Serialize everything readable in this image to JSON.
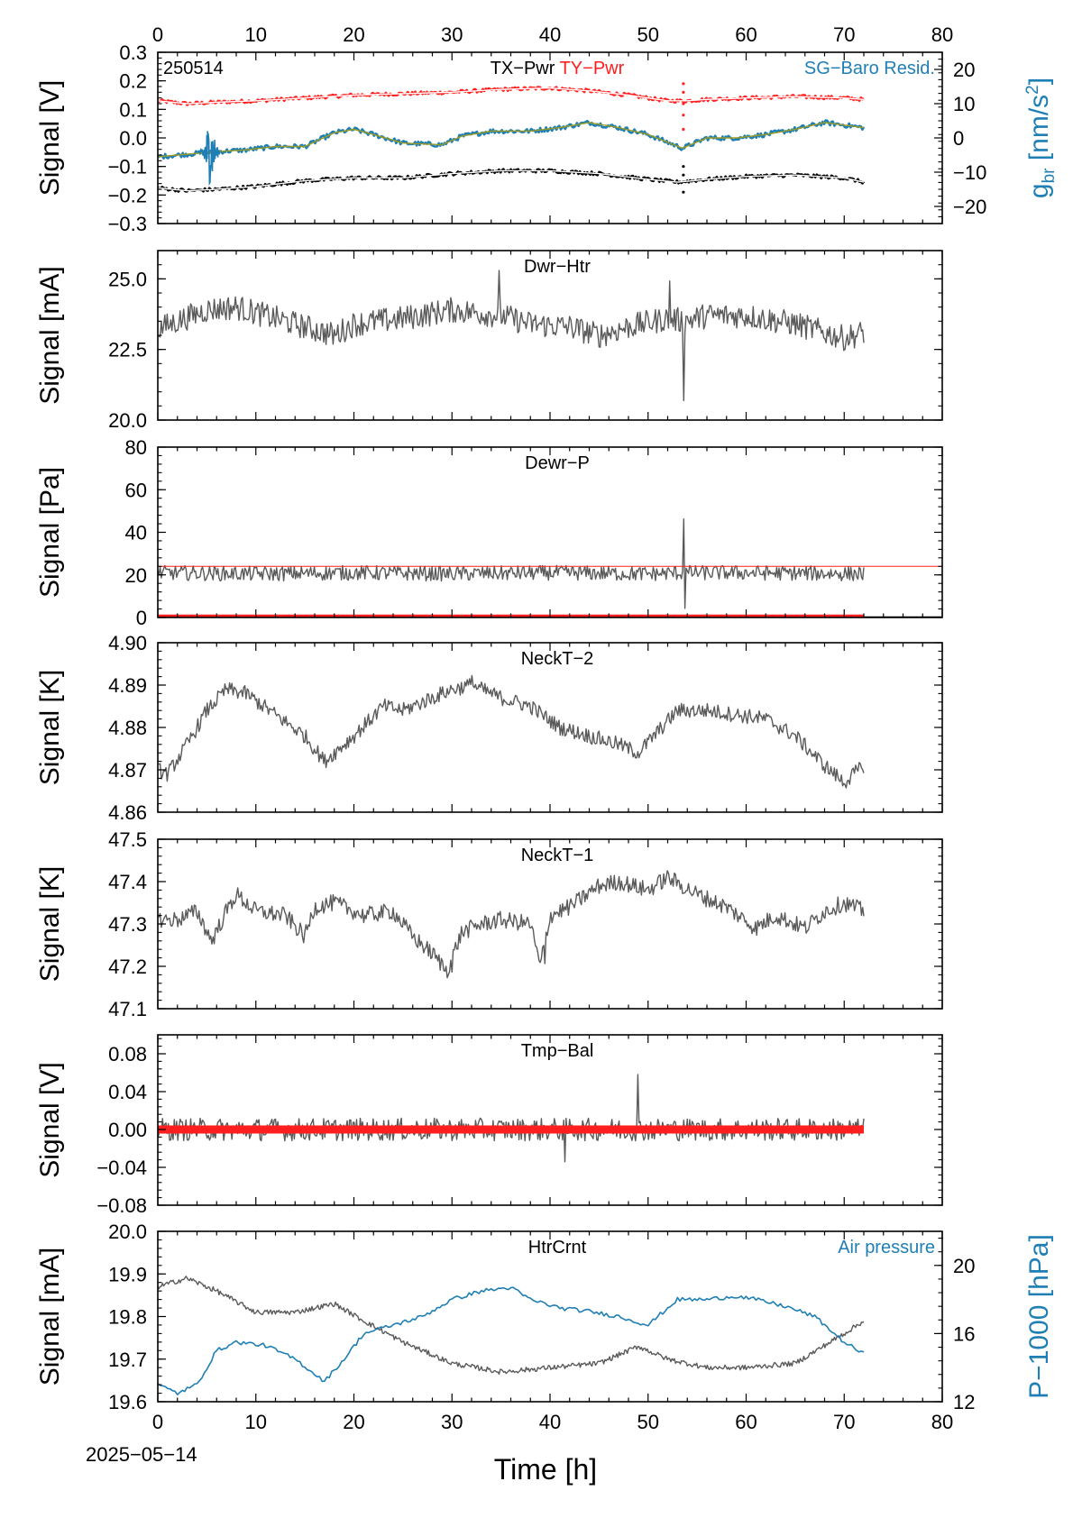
{
  "figure": {
    "date_label": "2025−05−14",
    "x_title": "Time [h]",
    "x_range": [
      0,
      80
    ],
    "x_ticks": [
      0,
      10,
      20,
      30,
      40,
      50,
      60,
      70,
      80
    ],
    "colors": {
      "black": "#000000",
      "red": "#ff1f1f",
      "blue": "#1f7fb4",
      "gray": "#5a5a5a",
      "olive": "#9a9a26"
    }
  },
  "chart_data": [
    {
      "type": "line",
      "panel_id": "p1",
      "y_title": "Signal [V]",
      "ylim": [
        -0.3,
        0.3
      ],
      "y_ticks": [
        -0.3,
        -0.2,
        -0.1,
        0.0,
        0.1,
        0.2,
        0.3
      ],
      "y_tick_labels": [
        "−0.3",
        "−0.2",
        "−0.1",
        "0.0",
        "0.1",
        "0.2",
        "0.3"
      ],
      "annotations": {
        "id_label": "250514",
        "label_left": "TX−Pwr",
        "label_right": "TY−Pwr",
        "right_label": "SG−Baro Resid."
      },
      "right_axis": {
        "title_main": "g",
        "title_sub": "br",
        "title_unit": " [nm/s",
        "title_sup": "2",
        "title_end": "]",
        "ylim": [
          -25,
          25
        ],
        "ticks": [
          -20,
          -10,
          0,
          10,
          20
        ],
        "tick_labels": [
          "−20",
          "−10",
          "0",
          "10",
          "20"
        ],
        "color": "#1f7fb4"
      },
      "series": [
        {
          "name": "TY−Pwr",
          "color": "#ff1f1f",
          "x": [
            0,
            3,
            6,
            10,
            15,
            20,
            25,
            30,
            35,
            40,
            44,
            48,
            52,
            54,
            56,
            60,
            65,
            70,
            72
          ],
          "y": [
            0.13,
            0.12,
            0.125,
            0.13,
            0.14,
            0.15,
            0.155,
            0.16,
            0.17,
            0.175,
            0.165,
            0.15,
            0.13,
            0.13,
            0.135,
            0.14,
            0.145,
            0.14,
            0.135
          ]
        },
        {
          "name": "SG−Baro Resid.",
          "color": "#1f7fb4",
          "axis": "right",
          "x": [
            0,
            2,
            4,
            6,
            9,
            12,
            15,
            18,
            20,
            22,
            25,
            29,
            31,
            34,
            38,
            41,
            44,
            47,
            50,
            53.5,
            56,
            59,
            62,
            65,
            68,
            72
          ],
          "y": [
            -5.5,
            -5,
            -4.5,
            -4,
            -3.5,
            -2.5,
            -2.5,
            1.5,
            2.5,
            1,
            -1.5,
            -2,
            0.5,
            2,
            2,
            3,
            4.5,
            3,
            1,
            -3,
            0,
            0,
            1,
            2.5,
            4.5,
            3
          ]
        },
        {
          "name": "TX−Pwr",
          "color": "#000000",
          "x": [
            0,
            3,
            6,
            10,
            15,
            20,
            25,
            30,
            35,
            40,
            45,
            50,
            53,
            56,
            60,
            65,
            70,
            72
          ],
          "y": [
            -0.175,
            -0.185,
            -0.18,
            -0.17,
            -0.15,
            -0.14,
            -0.14,
            -0.125,
            -0.115,
            -0.115,
            -0.125,
            -0.145,
            -0.155,
            -0.145,
            -0.135,
            -0.13,
            -0.14,
            -0.155
          ]
        }
      ]
    },
    {
      "type": "line",
      "panel_id": "p2",
      "title": "Dwr−Htr",
      "y_title": "Signal [mA]",
      "ylim": [
        20.0,
        26.0
      ],
      "y_ticks": [
        20.0,
        22.5,
        25.0
      ],
      "y_tick_labels": [
        "20.0",
        "22.5",
        "25.0"
      ],
      "series": [
        {
          "color": "#5a5a5a",
          "x": [
            0,
            2,
            5,
            8,
            11,
            15,
            18,
            20,
            25,
            30,
            35,
            38,
            42,
            45,
            48,
            52,
            53.6,
            56,
            60,
            65,
            70,
            72
          ],
          "y": [
            23.2,
            23.5,
            23.9,
            24.0,
            23.7,
            23.3,
            23.0,
            23.4,
            23.6,
            23.9,
            23.7,
            23.4,
            23.3,
            23.0,
            23.3,
            23.6,
            23.5,
            23.7,
            23.7,
            23.4,
            22.9,
            23.1
          ]
        }
      ]
    },
    {
      "type": "line",
      "panel_id": "p3",
      "title": "Dewr−P",
      "y_title": "Signal [Pa]",
      "ylim": [
        0,
        80
      ],
      "y_ticks": [
        0,
        20,
        40,
        60,
        80
      ],
      "y_tick_labels": [
        "0",
        "20",
        "40",
        "60",
        "80"
      ],
      "series": [
        {
          "color": "#5a5a5a",
          "x": [
            0,
            10,
            20,
            30,
            40,
            50,
            53.6,
            60,
            72
          ],
          "y": [
            21,
            20.5,
            21,
            20.5,
            21,
            20.5,
            21,
            21,
            20.5
          ]
        }
      ]
    },
    {
      "type": "line",
      "panel_id": "p4",
      "title": "NeckT−2",
      "y_title": "Signal [K]",
      "ylim": [
        4.86,
        4.9
      ],
      "y_ticks": [
        4.86,
        4.87,
        4.88,
        4.89,
        4.9
      ],
      "y_tick_labels": [
        "4.86",
        "4.87",
        "4.88",
        "4.89",
        "4.90"
      ],
      "series": [
        {
          "color": "#5a5a5a",
          "x": [
            0,
            1,
            3,
            5,
            7,
            9,
            12,
            15,
            17,
            20,
            23,
            25,
            27,
            30,
            32,
            35,
            38,
            41,
            44,
            47,
            49,
            51,
            53,
            56,
            59,
            62,
            65,
            68,
            70,
            72
          ],
          "y": [
            4.87,
            4.869,
            4.876,
            4.884,
            4.889,
            4.888,
            4.883,
            4.878,
            4.872,
            4.878,
            4.885,
            4.884,
            4.886,
            4.889,
            4.89,
            4.887,
            4.885,
            4.88,
            4.878,
            4.876,
            4.874,
            4.879,
            4.884,
            4.884,
            4.883,
            4.882,
            4.878,
            4.871,
            4.867,
            4.871
          ]
        }
      ]
    },
    {
      "type": "line",
      "panel_id": "p5",
      "title": "NeckT−1",
      "y_title": "Signal [K]",
      "ylim": [
        47.1,
        47.5
      ],
      "y_ticks": [
        47.1,
        47.2,
        47.3,
        47.4,
        47.5
      ],
      "y_tick_labels": [
        "47.1",
        "47.2",
        "47.3",
        "47.4",
        "47.5"
      ],
      "series": [
        {
          "color": "#5a5a5a",
          "x": [
            0,
            2,
            4,
            5.5,
            7,
            8,
            10,
            13,
            15,
            16,
            18,
            21,
            24,
            26,
            28,
            29.5,
            31,
            33,
            35,
            38,
            39,
            40,
            42,
            45,
            47,
            50,
            52,
            55,
            58,
            61,
            63,
            66,
            68,
            70,
            72
          ],
          "y": [
            47.31,
            47.31,
            47.33,
            47.26,
            47.33,
            47.37,
            47.33,
            47.32,
            47.27,
            47.34,
            47.35,
            47.32,
            47.33,
            47.27,
            47.23,
            47.19,
            47.28,
            47.3,
            47.31,
            47.3,
            47.2,
            47.32,
            47.34,
            47.39,
            47.4,
            47.38,
            47.41,
            47.37,
            47.34,
            47.29,
            47.32,
            47.29,
            47.33,
            47.35,
            47.33
          ]
        }
      ]
    },
    {
      "type": "line",
      "panel_id": "p6",
      "title": "Tmp−Bal",
      "y_title": "Signal [V]",
      "ylim": [
        -0.08,
        0.1
      ],
      "y_ticks": [
        -0.08,
        -0.04,
        0.0,
        0.04,
        0.08
      ],
      "y_tick_labels": [
        "−0.08",
        "−0.04",
        "0.00",
        "0.04",
        "0.08"
      ],
      "series": [
        {
          "color": "#5a5a5a",
          "x": [
            0,
            72
          ],
          "y": [
            0.0,
            0.0
          ]
        },
        {
          "color": "#ff1f1f",
          "x": [
            0,
            72
          ],
          "y": [
            0.0,
            0.0
          ]
        }
      ]
    },
    {
      "type": "line",
      "panel_id": "p7",
      "title": "HtrCrnt",
      "y_title": "Signal [mA]",
      "ylim": [
        19.6,
        20.0
      ],
      "y_ticks": [
        19.6,
        19.7,
        19.8,
        19.9,
        20.0
      ],
      "y_tick_labels": [
        "19.6",
        "19.7",
        "19.8",
        "19.9",
        "20.0"
      ],
      "annotations": {
        "right_label": "Air pressure"
      },
      "right_axis": {
        "title": "P−1000 [hPa]",
        "ylim": [
          12,
          22
        ],
        "ticks": [
          12,
          16,
          20
        ],
        "tick_labels": [
          "12",
          "16",
          "20"
        ],
        "color": "#1f7fb4"
      },
      "series": [
        {
          "name": "HtrCrnt",
          "color": "#5a5a5a",
          "x": [
            0,
            3,
            6,
            10,
            14,
            18,
            21,
            25,
            30,
            35,
            40,
            45,
            49,
            52,
            56,
            60,
            65,
            70,
            72
          ],
          "y": [
            19.87,
            19.89,
            19.86,
            19.81,
            19.81,
            19.83,
            19.79,
            19.74,
            19.69,
            19.67,
            19.68,
            19.69,
            19.73,
            19.7,
            19.68,
            19.68,
            19.69,
            19.76,
            19.79
          ]
        },
        {
          "name": "Air pressure",
          "color": "#1f7fb4",
          "axis": "right",
          "x": [
            0,
            2,
            4,
            6,
            8,
            11,
            14,
            17,
            19,
            21,
            24,
            27,
            30,
            33,
            36,
            38,
            41,
            44,
            47,
            50,
            53,
            56,
            59,
            61,
            64,
            67,
            70,
            72
          ],
          "y": [
            13,
            12.5,
            13,
            15,
            15.5,
            15.3,
            14.5,
            13.2,
            14.5,
            16,
            16.5,
            17,
            18,
            18.5,
            18.7,
            18,
            17.5,
            17.3,
            17,
            16.5,
            18,
            18,
            18.2,
            18,
            17.6,
            17,
            15.5,
            14.8
          ]
        }
      ]
    }
  ]
}
